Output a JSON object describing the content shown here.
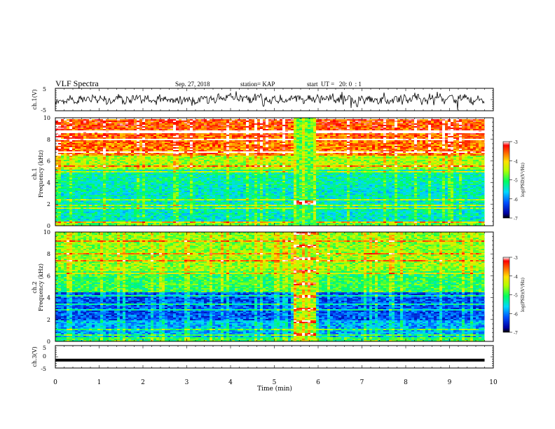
{
  "header": {
    "title": "VLF Spectra",
    "date": "Sep. 27, 2018",
    "station": "station= KAP",
    "start": "start  UT =   20: 0  : 1"
  },
  "chart_data": [
    {
      "type": "line",
      "name": "ch1-waveform",
      "ylabel": "ch.1(V)",
      "ylim": [
        -5,
        5
      ],
      "yticks": [
        "5",
        "-5"
      ],
      "xlim": [
        0,
        10
      ],
      "color": "#000000"
    },
    {
      "type": "heatmap",
      "name": "ch1-spectrogram",
      "ylabel": "ch.1\nFrequency  (kHz)",
      "xlim": [
        0,
        10
      ],
      "ylim": [
        0,
        10
      ],
      "yticks": [
        "0",
        "2",
        "4",
        "6",
        "8",
        "10"
      ],
      "colorbar": {
        "label": "log(PSD)(V²/Hz)",
        "range": [
          -7,
          -3
        ],
        "ticks": [
          "-3",
          "-4",
          "-5",
          "-6",
          "-7"
        ]
      },
      "burst_time_min": [
        5.4,
        5.9
      ],
      "notes": "noise intense above ~5 kHz, lower band below ~4 kHz, burst near 2.2 kHz during burst window"
    },
    {
      "type": "heatmap",
      "name": "ch2-spectrogram",
      "ylabel": "ch.2\nFrequency  (kHz)",
      "xlim": [
        0,
        10
      ],
      "ylim": [
        0,
        10
      ],
      "yticks": [
        "0",
        "2",
        "4",
        "6",
        "8",
        "10"
      ],
      "colorbar": {
        "label": "log(PSD)(V²/Hz)",
        "range": [
          -7,
          -3
        ],
        "ticks": [
          "-3",
          "-4",
          "-5",
          "-6",
          "-7"
        ]
      },
      "burst_time_min": [
        5.4,
        5.9
      ]
    },
    {
      "type": "line",
      "name": "ch3-waveform",
      "ylabel": "ch.3(V)",
      "ylim": [
        -5,
        5
      ],
      "yticks": [
        "5",
        "0",
        "-5"
      ],
      "xlim": [
        0,
        10
      ],
      "x": [
        0,
        9.8
      ],
      "y": [
        -1.5,
        -1.5
      ],
      "color": "#000000"
    }
  ],
  "xaxis": {
    "label": "Time  (min)",
    "ticks": [
      "0",
      "1",
      "2",
      "3",
      "4",
      "5",
      "6",
      "7",
      "8",
      "9",
      "10"
    ],
    "range": [
      0,
      10
    ],
    "data_end": 9.8
  }
}
